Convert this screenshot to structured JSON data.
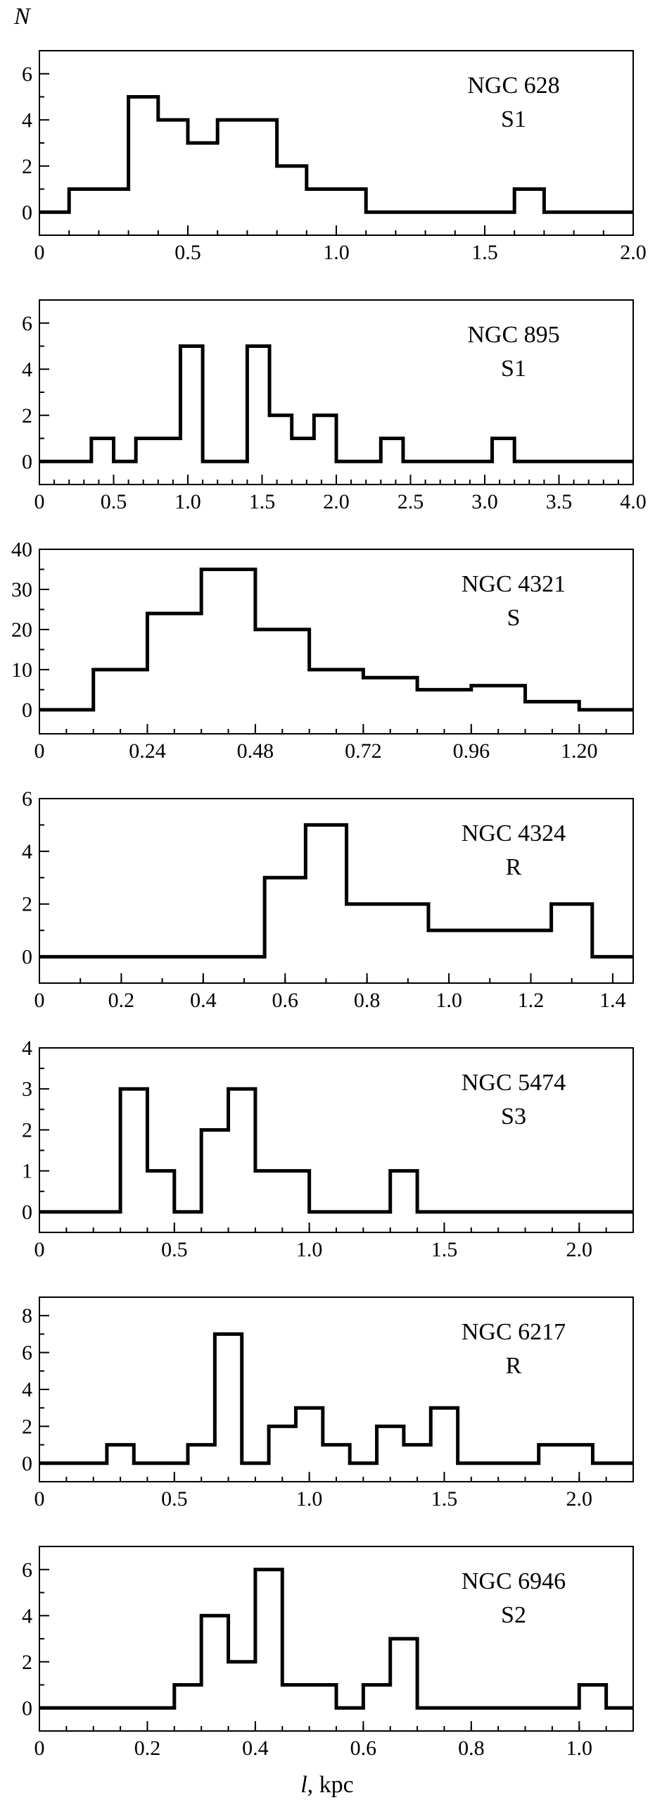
{
  "axis": {
    "ylabel": "N",
    "xlabel_prefix": "l",
    "xlabel_suffix": ", kpc"
  },
  "chart_data": [
    {
      "type": "histogram",
      "galaxy": "NGC 628",
      "type_label": "S1",
      "xlim": [
        0,
        2.0
      ],
      "ylim": [
        -1,
        7
      ],
      "xticks": [
        0,
        0.5,
        1.0,
        1.5,
        2.0
      ],
      "xtick_labels": [
        "0",
        "0.5",
        "1.0",
        "1.5",
        "2.0"
      ],
      "xminor": 0.1,
      "yticks": [
        0,
        2,
        4,
        6
      ],
      "ytick_labels": [
        "0",
        "2",
        "4",
        "6"
      ],
      "edges": [
        0,
        0.1,
        0.2,
        0.3,
        0.4,
        0.5,
        0.6,
        0.7,
        0.8,
        0.9,
        1.0,
        1.1,
        1.2,
        1.3,
        1.4,
        1.5,
        1.6,
        1.7,
        1.8,
        1.9,
        2.0
      ],
      "counts": [
        0,
        1,
        1,
        5,
        4,
        3,
        4,
        4,
        2,
        1,
        1,
        0,
        0,
        0,
        0,
        0,
        1,
        0,
        0,
        0
      ]
    },
    {
      "type": "histogram",
      "galaxy": "NGC 895",
      "type_label": "S1",
      "xlim": [
        0,
        4.0
      ],
      "ylim": [
        -1,
        7
      ],
      "xticks": [
        0,
        0.5,
        1.0,
        1.5,
        2.0,
        2.5,
        3.0,
        3.5,
        4.0
      ],
      "xtick_labels": [
        "0",
        "0.5",
        "1.0",
        "1.5",
        "2.0",
        "2.5",
        "3.0",
        "3.5",
        "4.0"
      ],
      "xminor": 0.1,
      "yticks": [
        0,
        2,
        4,
        6
      ],
      "ytick_labels": [
        "0",
        "2",
        "4",
        "6"
      ],
      "edges": [
        0,
        0.35,
        0.5,
        0.65,
        0.95,
        1.1,
        1.4,
        1.55,
        1.7,
        1.85,
        2.0,
        2.3,
        2.45,
        3.05,
        3.2,
        4.0
      ],
      "counts": [
        0,
        1,
        0,
        1,
        5,
        0,
        5,
        2,
        1,
        2,
        0,
        1,
        0,
        1,
        0
      ]
    },
    {
      "type": "histogram",
      "galaxy": "NGC 4321",
      "type_label": "S",
      "xlim": [
        0,
        1.32
      ],
      "ylim": [
        -6,
        40
      ],
      "xticks": [
        0,
        0.24,
        0.48,
        0.72,
        0.96,
        1.2
      ],
      "xtick_labels": [
        "0",
        "0.24",
        "0.48",
        "0.72",
        "0.96",
        "1.20"
      ],
      "xminor": 0.06,
      "yticks": [
        0,
        10,
        20,
        30,
        40
      ],
      "ytick_labels": [
        "0",
        "10",
        "20",
        "30",
        "40"
      ],
      "edges": [
        0,
        0.12,
        0.24,
        0.36,
        0.48,
        0.6,
        0.72,
        0.84,
        0.96,
        1.08,
        1.2,
        1.32
      ],
      "counts": [
        0,
        10,
        24,
        35,
        20,
        10,
        8,
        5,
        6,
        2,
        0
      ]
    },
    {
      "type": "histogram",
      "galaxy": "NGC 4324",
      "type_label": "R",
      "xlim": [
        0,
        1.45
      ],
      "ylim": [
        -1,
        6
      ],
      "xticks": [
        0,
        0.2,
        0.4,
        0.6,
        0.8,
        1.0,
        1.2,
        1.4
      ],
      "xtick_labels": [
        "0",
        "0.2",
        "0.4",
        "0.6",
        "0.8",
        "1.0",
        "1.2",
        "1.4"
      ],
      "xminor": 0.1,
      "yticks": [
        0,
        2,
        4,
        6
      ],
      "ytick_labels": [
        "0",
        "2",
        "4",
        "6"
      ],
      "edges": [
        0,
        0.55,
        0.65,
        0.75,
        0.95,
        1.25,
        1.35,
        1.45
      ],
      "counts": [
        0,
        3,
        5,
        2,
        1,
        2,
        0
      ]
    },
    {
      "type": "histogram",
      "galaxy": "NGC 5474",
      "type_label": "S3",
      "xlim": [
        0,
        2.2
      ],
      "ylim": [
        -0.5,
        4
      ],
      "xticks": [
        0,
        0.5,
        1.0,
        1.5,
        2.0
      ],
      "xtick_labels": [
        "0",
        "0.5",
        "1.0",
        "1.5",
        "2.0"
      ],
      "xminor": 0.1,
      "yticks": [
        0,
        1,
        2,
        3,
        4
      ],
      "ytick_labels": [
        "0",
        "1",
        "2",
        "3",
        "4"
      ],
      "edges": [
        0,
        0.3,
        0.4,
        0.5,
        0.6,
        0.7,
        0.8,
        1.0,
        1.3,
        1.4,
        2.2
      ],
      "counts": [
        0,
        3,
        1,
        0,
        2,
        3,
        1,
        0,
        1,
        0
      ]
    },
    {
      "type": "histogram",
      "galaxy": "NGC 6217",
      "type_label": "R",
      "xlim": [
        0,
        2.2
      ],
      "ylim": [
        -1,
        9
      ],
      "xticks": [
        0,
        0.5,
        1.0,
        1.5,
        2.0
      ],
      "xtick_labels": [
        "0",
        "0.5",
        "1.0",
        "1.5",
        "2.0"
      ],
      "xminor": 0.1,
      "yticks": [
        0,
        2,
        4,
        6,
        8
      ],
      "ytick_labels": [
        "0",
        "2",
        "4",
        "6",
        "8"
      ],
      "edges": [
        0,
        0.25,
        0.35,
        0.55,
        0.65,
        0.75,
        0.85,
        0.95,
        1.05,
        1.15,
        1.25,
        1.35,
        1.45,
        1.55,
        1.85,
        2.05,
        2.2
      ],
      "counts": [
        0,
        1,
        0,
        1,
        7,
        0,
        2,
        3,
        1,
        0,
        2,
        1,
        3,
        0,
        1,
        0
      ]
    },
    {
      "type": "histogram",
      "galaxy": "NGC 6946",
      "type_label": "S2",
      "xlim": [
        0,
        1.1
      ],
      "ylim": [
        -1,
        7
      ],
      "xticks": [
        0,
        0.2,
        0.4,
        0.6,
        0.8,
        1.0
      ],
      "xtick_labels": [
        "0",
        "0.2",
        "0.4",
        "0.6",
        "0.8",
        "1.0"
      ],
      "xminor": 0.05,
      "yticks": [
        0,
        2,
        4,
        6
      ],
      "ytick_labels": [
        "0",
        "2",
        "4",
        "6"
      ],
      "edges": [
        0,
        0.25,
        0.3,
        0.35,
        0.4,
        0.45,
        0.55,
        0.6,
        0.65,
        0.7,
        1.0,
        1.05,
        1.1
      ],
      "counts": [
        0,
        1,
        4,
        2,
        6,
        1,
        0,
        1,
        3,
        0,
        1,
        0
      ]
    }
  ]
}
